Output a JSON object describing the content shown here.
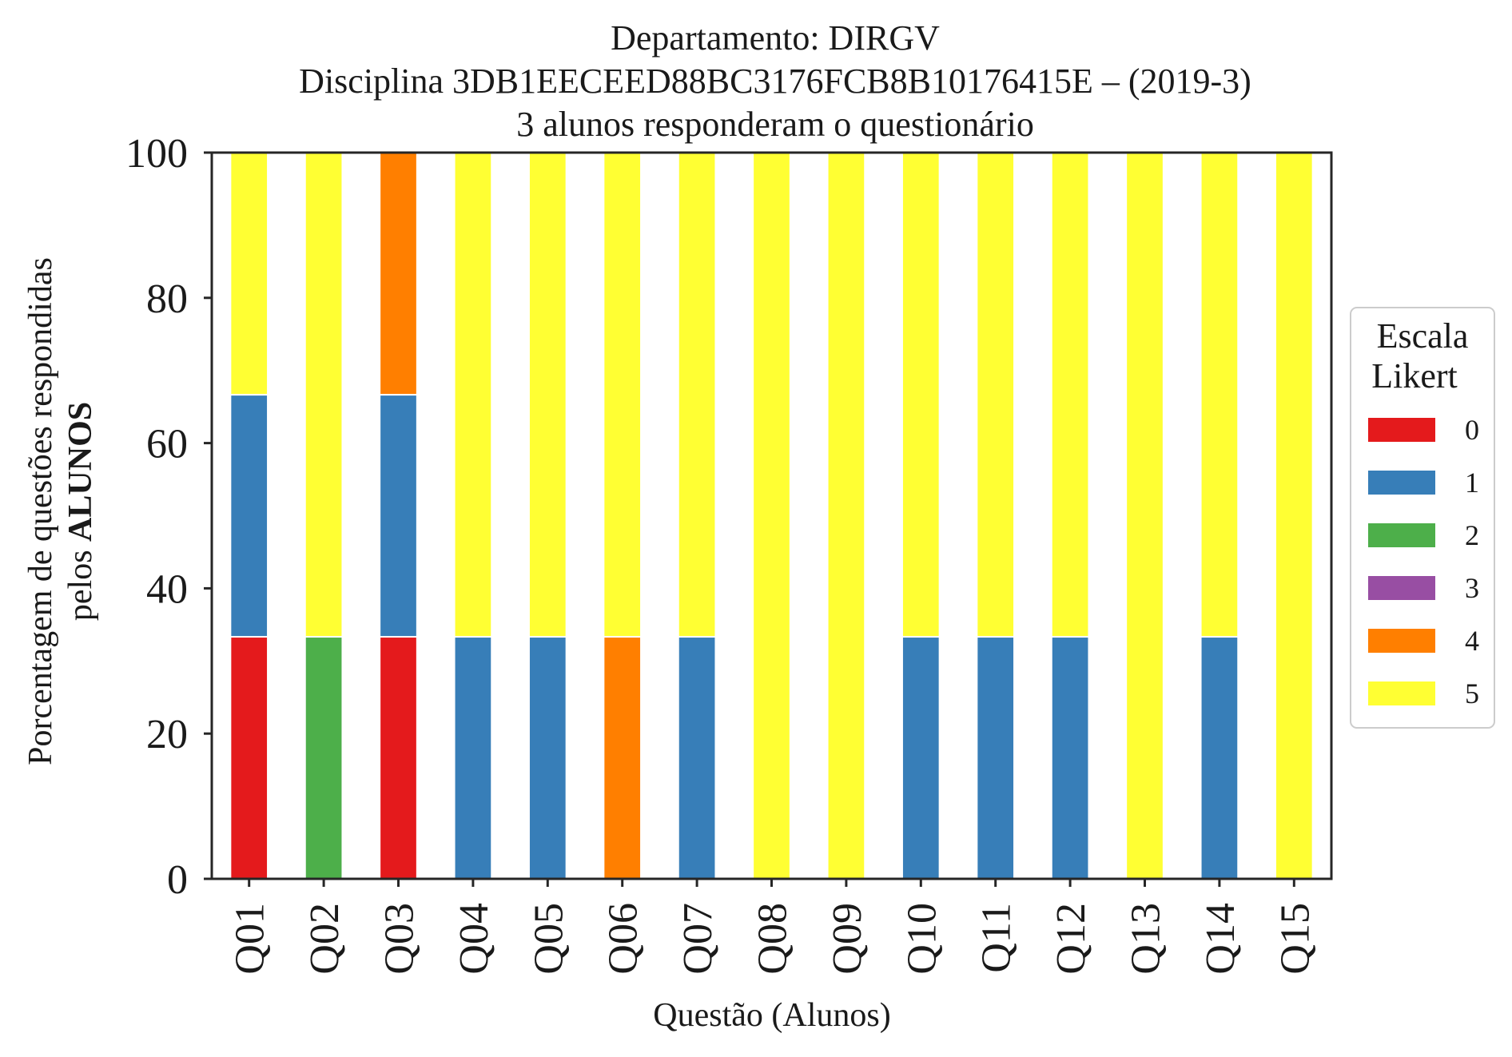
{
  "chart_data": {
    "type": "bar",
    "stacked": true,
    "title_lines": [
      "Departamento: DIRGV",
      "Disciplina 3DB1EECEED88BC3176FCB8B10176415E – (2019-3)",
      "3 alunos responderam o questionário"
    ],
    "xlabel": "Questão (Alunos)",
    "ylabel_line1": "Porcentagem de questões respondidas",
    "ylabel_line2_prefix": "pelos ",
    "ylabel_line2_bold": "ALUNOS",
    "ylim": [
      0,
      100
    ],
    "yticks": [
      "0",
      "20",
      "40",
      "60",
      "80",
      "100"
    ],
    "categories": [
      "Q01",
      "Q02",
      "Q03",
      "Q04",
      "Q05",
      "Q06",
      "Q07",
      "Q08",
      "Q09",
      "Q10",
      "Q11",
      "Q12",
      "Q13",
      "Q14",
      "Q15"
    ],
    "series": [
      {
        "name": "0",
        "color": "#e41a1c",
        "values": [
          33.33,
          0,
          33.33,
          0,
          0,
          0,
          0,
          0,
          0,
          0,
          0,
          0,
          0,
          0,
          0
        ]
      },
      {
        "name": "1",
        "color": "#377eb8",
        "values": [
          33.33,
          0,
          33.33,
          33.33,
          33.33,
          0,
          33.33,
          0,
          0,
          33.33,
          33.33,
          33.33,
          0,
          33.33,
          0
        ]
      },
      {
        "name": "2",
        "color": "#4daf4a",
        "values": [
          0,
          33.33,
          0,
          0,
          0,
          0,
          0,
          0,
          0,
          0,
          0,
          0,
          0,
          0,
          0
        ]
      },
      {
        "name": "3",
        "color": "#984ea3",
        "values": [
          0,
          0,
          0,
          0,
          0,
          0,
          0,
          0,
          0,
          0,
          0,
          0,
          0,
          0,
          0
        ]
      },
      {
        "name": "4",
        "color": "#ff7f00",
        "values": [
          0,
          0,
          33.33,
          0,
          0,
          33.33,
          0,
          0,
          0,
          0,
          0,
          0,
          0,
          0,
          0
        ]
      },
      {
        "name": "5",
        "color": "#ffff33",
        "values": [
          33.33,
          66.67,
          0,
          66.67,
          66.67,
          66.67,
          66.67,
          100,
          100,
          66.67,
          66.67,
          66.67,
          100,
          66.67,
          100
        ]
      }
    ],
    "legend": {
      "title_lines": [
        "Escala",
        "Likert"
      ],
      "placement": "right"
    },
    "grid": false
  }
}
